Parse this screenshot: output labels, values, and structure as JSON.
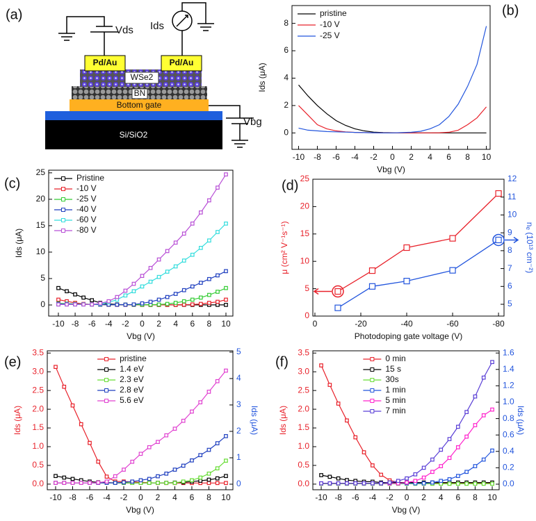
{
  "diagram": {
    "panel_label": "(a)",
    "texts": {
      "vds": "Vds",
      "ids": "Ids",
      "contact_left": "Pd/Au",
      "contact_right": "Pd/Au",
      "channel": "WSe2",
      "dielectric": "BN",
      "gate": "Bottom gate",
      "substrate": "Si/SiO2",
      "vbg": "Vbg"
    }
  },
  "chart_data": [
    {
      "type": "line",
      "panel_label": "(b)",
      "xlabel": "Vbg (V)",
      "ylabel": "Ids (μA)",
      "legend": "upper left",
      "marker": "none",
      "x": [
        -10,
        -9,
        -8,
        -7,
        -6,
        -5,
        -4,
        -3,
        -2,
        -1,
        0,
        1,
        2,
        3,
        4,
        5,
        6,
        7,
        8,
        9,
        10
      ],
      "xlim": [
        -10.7,
        10.4
      ],
      "xticks": [
        -10,
        -8,
        -6,
        -4,
        -2,
        0,
        2,
        4,
        6,
        8,
        10
      ],
      "ylim": [
        -1.2,
        9.3
      ],
      "yticks": [
        0,
        2,
        4,
        6,
        8
      ],
      "series": [
        {
          "name": "pristine",
          "color": "#000000",
          "values": [
            3.5,
            2.7,
            2.0,
            1.4,
            0.9,
            0.55,
            0.3,
            0.15,
            0.06,
            0.02,
            0.01,
            0,
            0,
            0,
            0,
            0,
            0,
            0,
            0,
            0,
            0
          ]
        },
        {
          "name": "-10 V",
          "color": "#e8212a",
          "values": [
            2.0,
            1.3,
            0.6,
            0.3,
            0.15,
            0.08,
            0.04,
            0.02,
            0.01,
            0,
            0,
            0,
            0,
            0,
            0,
            0.01,
            0.05,
            0.2,
            0.6,
            1.1,
            1.9
          ]
        },
        {
          "name": "-25 V",
          "color": "#2255dd",
          "values": [
            0.35,
            0.2,
            0.15,
            0.1,
            0.08,
            0.06,
            0.04,
            0.02,
            0.01,
            0,
            0,
            0.02,
            0.05,
            0.12,
            0.3,
            0.6,
            1.2,
            2.1,
            3.4,
            5.0,
            7.8
          ]
        }
      ]
    },
    {
      "type": "line",
      "panel_label": "(c)",
      "xlabel": "Vbg (V)",
      "ylabel": "Ids (μA)",
      "legend": "upper left",
      "marker": "square",
      "x": [
        -10,
        -9,
        -8,
        -7,
        -6,
        -5,
        -4,
        -3,
        -2,
        -1,
        0,
        1,
        2,
        3,
        4,
        5,
        6,
        7,
        8,
        9,
        10
      ],
      "xlim": [
        -11.16,
        10.83
      ],
      "xticks": [
        -10,
        -8,
        -6,
        -4,
        -2,
        0,
        2,
        4,
        6,
        8,
        10
      ],
      "ylim": [
        -2.1,
        25.5
      ],
      "yticks": [
        0,
        5,
        10,
        15,
        20,
        25
      ],
      "series": [
        {
          "name": "Pristine",
          "color": "#000000",
          "values": [
            3.2,
            2.6,
            2.0,
            1.4,
            0.9,
            0.4,
            0.2,
            0.1,
            0.05,
            0.05,
            0.03,
            0.02,
            0.02,
            0.02,
            0.02,
            0.02,
            0.02,
            0.02,
            0.02,
            0.02,
            0.02
          ]
        },
        {
          "name": "-10 V",
          "color": "#e8212a",
          "values": [
            1.0,
            0.7,
            0.4,
            0.2,
            0.1,
            0.05,
            0.03,
            0.02,
            0.02,
            0.02,
            0.02,
            0.02,
            0.02,
            0.02,
            0.03,
            0.05,
            0.1,
            0.2,
            0.4,
            0.6,
            1.0
          ]
        },
        {
          "name": "-25 V",
          "color": "#33cc33",
          "values": [
            0.3,
            0.25,
            0.2,
            0.15,
            0.1,
            0.08,
            0.06,
            0.05,
            0.05,
            0.05,
            0.05,
            0.06,
            0.08,
            0.2,
            0.4,
            0.7,
            1.0,
            1.4,
            1.9,
            2.5,
            3.2
          ]
        },
        {
          "name": "-40 V",
          "color": "#1f3fbf",
          "values": [
            0.2,
            0.18,
            0.15,
            0.12,
            0.1,
            0.08,
            0.06,
            0.05,
            0.05,
            0.1,
            0.3,
            0.6,
            1.0,
            1.5,
            2.1,
            2.8,
            3.5,
            4.2,
            4.9,
            5.6,
            6.4
          ]
        },
        {
          "name": "-60 V",
          "color": "#33dddd",
          "values": [
            0.1,
            0.1,
            0.1,
            0.1,
            0.1,
            0.2,
            0.5,
            1.0,
            1.8,
            2.6,
            3.5,
            4.4,
            5.3,
            6.3,
            7.3,
            8.4,
            9.5,
            10.8,
            12.2,
            13.8,
            15.4
          ]
        },
        {
          "name": "-80 V",
          "color": "#b84fd6",
          "values": [
            0.1,
            0.1,
            0.1,
            0.1,
            0.1,
            0.3,
            0.7,
            1.5,
            2.7,
            4.0,
            5.5,
            7.0,
            8.6,
            10.2,
            11.8,
            13.5,
            15.4,
            17.5,
            19.8,
            22.2,
            24.7
          ]
        }
      ]
    },
    {
      "type": "line",
      "panel_label": "(d)",
      "xlabel": "Photodoping gate voltage (V)",
      "ylabel": "μ (cm² V⁻¹s⁻¹)",
      "y2label": "nₑ (10¹³ cm⁻²)",
      "marker": "square",
      "y_axis_color": "#e8212a",
      "y2_axis_color": "#2255dd",
      "x": [
        -10,
        -25,
        -40,
        -60,
        -80
      ],
      "xlim": [
        0.9,
        -82.4
      ],
      "xticks": [
        0,
        -20,
        -40,
        -60,
        -80
      ],
      "ylim": [
        0,
        25
      ],
      "yticks": [
        0,
        5,
        10,
        15,
        20,
        25
      ],
      "y2lim": [
        4.34,
        12
      ],
      "y2ticks": [
        5,
        6,
        7,
        8,
        9,
        10,
        11,
        12
      ],
      "series": [
        {
          "color": "#e8212a",
          "values": [
            4.5,
            8.3,
            12.5,
            14.2,
            22.4
          ]
        },
        {
          "color": "#2255dd",
          "axis": "y2",
          "values": [
            4.8,
            6.0,
            6.3,
            6.9,
            8.6
          ]
        }
      ]
    },
    {
      "type": "line",
      "panel_label": "(e)",
      "xlabel": "Vbg (V)",
      "ylabel": "Ids (μA)",
      "y2label": "Ids (μA)",
      "legend": "upper center",
      "marker": "square",
      "y_axis_color": "#e8212a",
      "y2_axis_color": "#2255dd",
      "x": [
        -10,
        -9,
        -8,
        -7,
        -6,
        -5,
        -4,
        -3,
        -2,
        -1,
        0,
        1,
        2,
        3,
        4,
        5,
        6,
        7,
        8,
        9,
        10
      ],
      "xlim": [
        -10.98,
        10.82
      ],
      "xticks": [
        -10,
        -8,
        -6,
        -4,
        -2,
        0,
        2,
        4,
        6,
        8,
        10
      ],
      "ylim": [
        -0.15,
        3.56
      ],
      "yticks": [
        {
          "value": 0,
          "label": "0.0"
        },
        0.5,
        {
          "value": 1,
          "label": "1.0"
        },
        1.5,
        {
          "value": 2,
          "label": "2.0"
        },
        2.5,
        {
          "value": 3,
          "label": "3.0"
        },
        3.5
      ],
      "y2lim": [
        -0.21,
        5.05
      ],
      "y2ticks": [
        0,
        1,
        2,
        3,
        4,
        5
      ],
      "series": [
        {
          "name": "pristine",
          "color": "#e8212a",
          "values": [
            3.13,
            2.6,
            2.1,
            1.6,
            1.1,
            0.6,
            0.2,
            0.07,
            0.07,
            0.06,
            0.05,
            0.04,
            0.03,
            0.03,
            0.03,
            0.03,
            0.03,
            0.03,
            0.03,
            0.03,
            0.03
          ]
        },
        {
          "name": "1.4 eV",
          "color": "#000000",
          "axis": "y2",
          "values": [
            0.31,
            0.25,
            0.2,
            0.15,
            0.1,
            0.07,
            0.06,
            0.05,
            0.05,
            0.05,
            0.05,
            0.05,
            0.05,
            0.05,
            0.06,
            0.07,
            0.1,
            0.13,
            0.17,
            0.22,
            0.31
          ]
        },
        {
          "name": "2.3 eV",
          "color": "#66dd33",
          "axis": "y2",
          "values": [
            0.05,
            0.05,
            0.05,
            0.05,
            0.05,
            0.05,
            0.05,
            0.05,
            0.05,
            0.05,
            0.05,
            0.05,
            0.05,
            0.05,
            0.05,
            0.1,
            0.15,
            0.25,
            0.4,
            0.6,
            0.89
          ]
        },
        {
          "name": "2.8 eV",
          "color": "#1f3fbf",
          "axis": "y2",
          "values": [
            0.05,
            0.05,
            0.05,
            0.05,
            0.05,
            0.05,
            0.05,
            0.05,
            0.07,
            0.1,
            0.15,
            0.2,
            0.3,
            0.4,
            0.55,
            0.7,
            0.9,
            1.1,
            1.3,
            1.55,
            1.82
          ]
        },
        {
          "name": "5.6 eV",
          "color": "#e040d0",
          "axis": "y2",
          "values": [
            0.05,
            0.05,
            0.05,
            0.05,
            0.05,
            0.06,
            0.1,
            0.3,
            0.55,
            0.85,
            1.15,
            1.4,
            1.6,
            1.85,
            2.1,
            2.4,
            2.75,
            3.1,
            3.5,
            3.9,
            4.3
          ]
        }
      ]
    },
    {
      "type": "line",
      "panel_label": "(f)",
      "xlabel": "Vbg (V)",
      "ylabel": "Ids (μA)",
      "y2label": "Ids (μA)",
      "legend": "upper center",
      "marker": "square",
      "y_axis_color": "#e8212a",
      "y2_axis_color": "#2255dd",
      "x": [
        -10,
        -9,
        -8,
        -7,
        -6,
        -5,
        -4,
        -3,
        -2,
        -1,
        0,
        1,
        2,
        3,
        4,
        5,
        6,
        7,
        8,
        9,
        10
      ],
      "xlim": [
        -10.98,
        10.81
      ],
      "xticks": [
        -10,
        -8,
        -6,
        -4,
        -2,
        0,
        2,
        4,
        6,
        8,
        10
      ],
      "ylim": [
        -0.15,
        3.56
      ],
      "yticks": [
        {
          "value": 0,
          "label": "0.0"
        },
        0.5,
        {
          "value": 1,
          "label": "1.0"
        },
        1.5,
        {
          "value": 2,
          "label": "2.0"
        },
        2.5,
        {
          "value": 3,
          "label": "3.0"
        },
        3.5
      ],
      "y2lim": [
        -0.068,
        1.627
      ],
      "y2ticks": [
        {
          "value": 0,
          "label": "0.0"
        },
        0.2,
        0.4,
        0.6,
        0.8,
        {
          "value": 1,
          "label": "1.0"
        },
        1.2,
        1.4,
        1.6
      ],
      "series": [
        {
          "name": "0 min",
          "color": "#e8212a",
          "values": [
            3.17,
            2.65,
            2.15,
            1.7,
            1.25,
            0.85,
            0.5,
            0.25,
            0.1,
            0.05,
            0.03,
            0.02,
            0.02,
            0.02,
            0.02,
            0.02,
            0.02,
            0.02,
            0.02,
            0.02,
            0.02
          ]
        },
        {
          "name": "15 s",
          "color": "#000000",
          "axis": "y2",
          "values": [
            0.11,
            0.09,
            0.07,
            0.05,
            0.04,
            0.03,
            0.03,
            0.02,
            0.02,
            0.02,
            0.02,
            0.02,
            0.02,
            0.02,
            0.02,
            0.02,
            0.02,
            0.02,
            0.02,
            0.02,
            0.02
          ]
        },
        {
          "name": "30s",
          "color": "#66dd33",
          "axis": "y2",
          "values": [
            0.005,
            0.005,
            0.005,
            0.005,
            0.005,
            0.005,
            0.005,
            0.005,
            0.005,
            0.005,
            0.005,
            0.005,
            0.005,
            0.005,
            0.005,
            0.005,
            0.005,
            0.005,
            0.005,
            0.005,
            0.005
          ]
        },
        {
          "name": "1 min",
          "color": "#2255dd",
          "axis": "y2",
          "values": [
            0.01,
            0.01,
            0.01,
            0.01,
            0.01,
            0.01,
            0.01,
            0.01,
            0.01,
            0.01,
            0.01,
            0.01,
            0.01,
            0.02,
            0.04,
            0.06,
            0.1,
            0.15,
            0.22,
            0.3,
            0.41
          ]
        },
        {
          "name": "5 min",
          "color": "#ff22cc",
          "axis": "y2",
          "values": [
            0.01,
            0.01,
            0.01,
            0.01,
            0.01,
            0.01,
            0.01,
            0.01,
            0.01,
            0.01,
            0.02,
            0.04,
            0.08,
            0.15,
            0.22,
            0.32,
            0.45,
            0.58,
            0.72,
            0.84,
            0.91
          ]
        },
        {
          "name": "7 min",
          "color": "#5a3fd6",
          "axis": "y2",
          "values": [
            0.01,
            0.01,
            0.01,
            0.01,
            0.01,
            0.01,
            0.01,
            0.01,
            0.02,
            0.04,
            0.07,
            0.12,
            0.2,
            0.3,
            0.42,
            0.55,
            0.7,
            0.88,
            1.07,
            1.3,
            1.49
          ]
        }
      ]
    }
  ]
}
